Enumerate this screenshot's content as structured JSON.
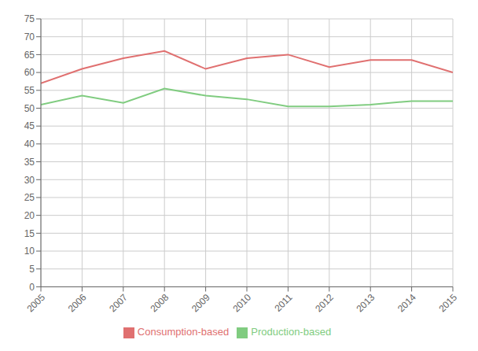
{
  "chart_data": {
    "type": "line",
    "x": [
      2005,
      2006,
      2007,
      2008,
      2009,
      2010,
      2011,
      2012,
      2013,
      2014,
      2015
    ],
    "series": [
      {
        "name": "Consumption-based",
        "color": "#e07070",
        "values": [
          57,
          61,
          64,
          66,
          61,
          64,
          65,
          61.5,
          63.5,
          63.5,
          60
        ]
      },
      {
        "name": "Production-based",
        "color": "#80cc80",
        "values": [
          51,
          53.5,
          51.5,
          55.5,
          53.5,
          52.5,
          50.5,
          50.5,
          51,
          52,
          52
        ]
      }
    ],
    "xlim": [
      2005,
      2015
    ],
    "xticks": [
      2005,
      2006,
      2007,
      2008,
      2009,
      2010,
      2011,
      2012,
      2013,
      2014,
      2015
    ],
    "ylim": [
      0,
      75
    ],
    "yticks": [
      0,
      5,
      10,
      15,
      20,
      25,
      30,
      35,
      40,
      45,
      50,
      55,
      60,
      65,
      70,
      75
    ],
    "grid": true,
    "legend": "bottom"
  }
}
